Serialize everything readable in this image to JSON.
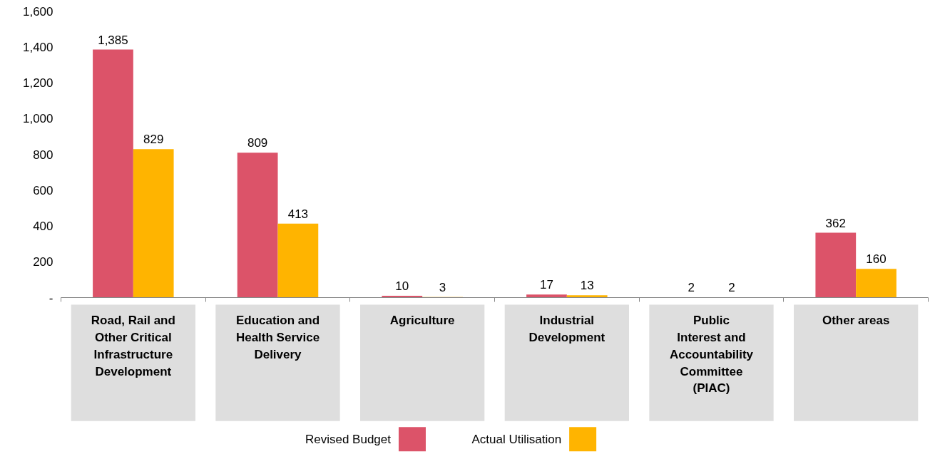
{
  "chart_data": {
    "type": "bar",
    "categories": [
      "Road, Rail and Other Critical Infrastructure Development",
      "Education and Health Service Delivery",
      "Agriculture",
      "Industrial Development",
      "Public Interest and Accountability Committee (PIAC)",
      "Other areas"
    ],
    "series": [
      {
        "name": "Revised Budget",
        "color": "#dc5369",
        "values": [
          1385,
          809,
          10,
          17,
          2,
          362
        ],
        "value_labels": [
          "1,385",
          "809",
          "10",
          "17",
          "2",
          "362"
        ]
      },
      {
        "name": "Actual Utilisation",
        "color": "#ffb400",
        "values": [
          829,
          413,
          3,
          13,
          2,
          160
        ]
      }
    ],
    "ylim": [
      0,
      1600
    ],
    "yticks": [
      {
        "value": 0,
        "label": "-"
      },
      {
        "value": 200,
        "label": "200"
      },
      {
        "value": 400,
        "label": "400"
      },
      {
        "value": 600,
        "label": "600"
      },
      {
        "value": 800,
        "label": "800"
      },
      {
        "value": 1000,
        "label": "1,000"
      },
      {
        "value": 1200,
        "label": "1,200"
      },
      {
        "value": 1400,
        "label": "1,400"
      },
      {
        "value": 1600,
        "label": "1,600"
      }
    ],
    "data_labels": true,
    "grid": false,
    "legend": "bottom"
  }
}
